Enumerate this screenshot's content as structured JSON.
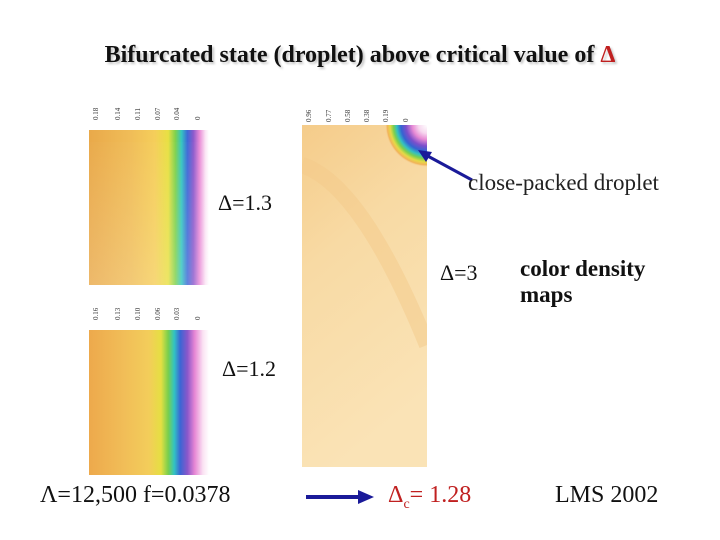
{
  "title": {
    "text": "Bifurcated state (droplet) above critical value of ",
    "symbol": "Δ"
  },
  "map_top_left": {
    "label": "Δ=1.3",
    "ticks": [
      "0.18",
      "0.14",
      "0.11",
      "0.07",
      "0.04",
      "0"
    ]
  },
  "map_bottom_left": {
    "label": "Δ=1.2",
    "ticks": [
      "0.16",
      "0.13",
      "0.10",
      "0.06",
      "0.03",
      "0"
    ]
  },
  "map_right": {
    "label": "Δ=3",
    "ticks": [
      "0.96",
      "0.77",
      "0.58",
      "0.38",
      "0.19",
      "0"
    ]
  },
  "annotation": "close-packed droplet",
  "side_label": "color density maps",
  "bottom": {
    "lambda_text": "Λ=12,500   f=0.0378",
    "dc_prefix": "Δ",
    "dc_sub": "c",
    "dc_suffix": "= 1.28",
    "lms": "LMS 2002"
  },
  "colors": {
    "title_delta": "#c02020",
    "arrow": "#1a1a99",
    "dc": "#c02020"
  }
}
